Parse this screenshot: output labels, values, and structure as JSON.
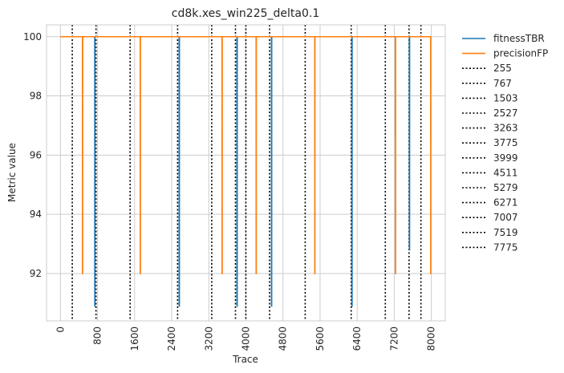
{
  "chart_data": {
    "type": "line",
    "title": "cd8k.xes_win225_delta0.1",
    "xlabel": "Trace",
    "ylabel": "Metric value",
    "xlim": [
      -300,
      8300
    ],
    "ylim": [
      90.4,
      100.4
    ],
    "xticks": [
      0,
      800,
      1600,
      2400,
      3200,
      4000,
      4800,
      5600,
      6400,
      7200,
      8000
    ],
    "yticks": [
      92,
      94,
      96,
      98,
      100
    ],
    "grid": true,
    "legend_position": "outside-right",
    "series": [
      {
        "name": "fitnessTBR",
        "color": "#1f77b4",
        "points": [
          [
            0,
            100
          ],
          [
            740,
            100
          ],
          [
            741,
            90.9
          ],
          [
            745,
            90.9
          ],
          [
            746,
            100
          ],
          [
            2560,
            100
          ],
          [
            2561,
            90.9
          ],
          [
            2565,
            90.9
          ],
          [
            2566,
            100
          ],
          [
            3807,
            100
          ],
          [
            3808,
            90.9
          ],
          [
            3812,
            90.9
          ],
          [
            3813,
            100
          ],
          [
            4551,
            100
          ],
          [
            4552,
            90.9
          ],
          [
            4556,
            90.9
          ],
          [
            4557,
            100
          ],
          [
            6285,
            100
          ],
          [
            6286,
            90.9
          ],
          [
            6290,
            90.9
          ],
          [
            6291,
            100
          ],
          [
            7525,
            100
          ],
          [
            7526,
            92.8
          ],
          [
            7530,
            92.8
          ],
          [
            7531,
            100
          ],
          [
            8000,
            100
          ]
        ]
      },
      {
        "name": "precisionFP",
        "color": "#ff7f0e",
        "points": [
          [
            0,
            100
          ],
          [
            475,
            100
          ],
          [
            476,
            92
          ],
          [
            479,
            92
          ],
          [
            480,
            100
          ],
          [
            1720,
            100
          ],
          [
            1721,
            92
          ],
          [
            1724,
            92
          ],
          [
            1725,
            100
          ],
          [
            3485,
            100
          ],
          [
            3486,
            92
          ],
          [
            3489,
            92
          ],
          [
            3490,
            100
          ],
          [
            4220,
            100
          ],
          [
            4221,
            92
          ],
          [
            4224,
            92
          ],
          [
            4225,
            100
          ],
          [
            5485,
            100
          ],
          [
            5486,
            92
          ],
          [
            5489,
            92
          ],
          [
            5490,
            100
          ],
          [
            7225,
            100
          ],
          [
            7226,
            92
          ],
          [
            7229,
            92
          ],
          [
            7230,
            100
          ],
          [
            7985,
            100
          ],
          [
            7986,
            92
          ],
          [
            8000,
            92
          ]
        ]
      }
    ],
    "vlines": [
      255,
      767,
      1503,
      2527,
      3263,
      3775,
      3999,
      4511,
      5279,
      6271,
      7007,
      7519,
      7775
    ],
    "vline_color": "#000000",
    "vline_style": "dotted",
    "vline_labels": [
      "255",
      "767",
      "1503",
      "2527",
      "3263",
      "3775",
      "3999",
      "4511",
      "5279",
      "6271",
      "7007",
      "7519",
      "7775"
    ]
  }
}
